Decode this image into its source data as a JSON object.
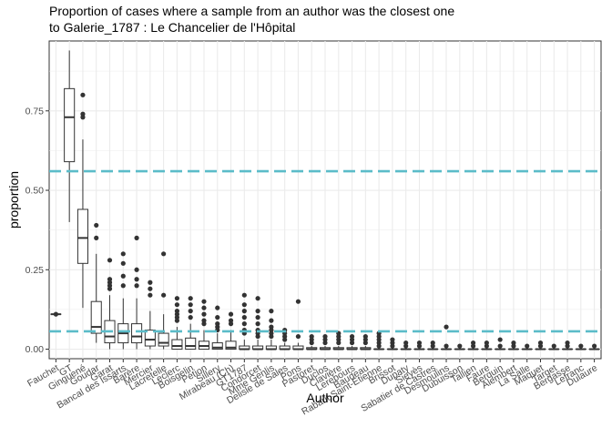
{
  "chart_data": {
    "type": "boxplot",
    "title": "Proportion of cases where a sample from an author was the closest one",
    "subtitle": "to Galerie_1787 : Le Chancelier de l'Hôpital",
    "xlabel": "Author",
    "ylabel": "proportion",
    "ylim": [
      -0.03,
      0.97
    ],
    "yticks": [
      0.0,
      0.25,
      0.5,
      0.75
    ],
    "ytick_labels": [
      "0.00",
      "0.25",
      "0.50",
      "0.75"
    ],
    "grid": true,
    "reference_lines": [
      {
        "y": 0.56,
        "color": "#5bbcc9",
        "style": "dashed"
      },
      {
        "y": 0.056,
        "color": "#5bbcc9",
        "style": "dashed"
      }
    ],
    "categories": [
      "Fauchet",
      "GT",
      "Ginguené",
      "Goudar",
      "Garat",
      "Bancal des Issarts",
      "Barère",
      "Mercier",
      "Lacretelle",
      "Leclerc",
      "Boisgelin",
      "Pétion (Cleville)",
      "Sillery",
      "Mirabeau (Ch)",
      "GT1787",
      "Condorcet",
      "Mme Genlis",
      "Delisle de Sales",
      "Pons",
      "Pastoret",
      "Duclos",
      "Clavière",
      "Lerebours",
      "Baudeau",
      "Rabaut Saint-Étienne",
      "Brissot",
      "Dupaty",
      "Sieyès",
      "Sabatier de Castres",
      "Desmoulins",
      "Dubuisson",
      "Tallien",
      "Faure",
      "Berquin",
      "Alembert",
      "La Salle",
      "Maquet",
      "Target",
      "Bergasse",
      "Lefranc",
      "Dulaure"
    ],
    "x_tick_labels": [
      "Fauchet",
      "GT",
      "Ginguené",
      "Goudar",
      "Garat",
      "Bancal des Issarts",
      "Barère",
      "Mercier",
      "Lacretelle",
      "Leclerc",
      "Boisgelin",
      "Pétion",
      "Sillery",
      "Mirabeau (Ch)",
      "GT1787",
      "Condorcet",
      "Mme Genlis",
      "Delisle de Sales",
      "Pons",
      "Pastoret",
      "Duclos",
      "Clavière",
      "Lerebours",
      "Baudeau",
      "Rabaut Saint-Étienne",
      "Brissot",
      "Dupaty",
      "Sieyès",
      "Sabatier de Castres",
      "Desmoulins",
      "Dubuisson",
      "Tallien",
      "Faure",
      "Berquin",
      "Alembert",
      "La Salle",
      "Maquet",
      "Target",
      "Bergasse",
      "Lefranc",
      "Dulaure"
    ],
    "box_color": "#333333",
    "boxes": [
      {
        "wmin": 0.11,
        "q1": 0.11,
        "median": 0.11,
        "q3": 0.11,
        "wmax": 0.11,
        "outliers": [
          0.11
        ]
      },
      {
        "wmin": 0.4,
        "q1": 0.59,
        "median": 0.73,
        "q3": 0.82,
        "wmax": 0.94,
        "outliers": []
      },
      {
        "wmin": 0.13,
        "q1": 0.27,
        "median": 0.35,
        "q3": 0.44,
        "wmax": 0.66,
        "outliers": [
          0.8,
          0.74,
          0.73
        ]
      },
      {
        "wmin": 0.02,
        "q1": 0.05,
        "median": 0.07,
        "q3": 0.15,
        "wmax": 0.3,
        "outliers": [
          0.39,
          0.35
        ]
      },
      {
        "wmin": 0.0,
        "q1": 0.02,
        "median": 0.04,
        "q3": 0.09,
        "wmax": 0.17,
        "outliers": [
          0.28,
          0.22,
          0.21,
          0.2,
          0.19
        ]
      },
      {
        "wmin": 0.0,
        "q1": 0.02,
        "median": 0.05,
        "q3": 0.08,
        "wmax": 0.16,
        "outliers": [
          0.3,
          0.27,
          0.23,
          0.2
        ]
      },
      {
        "wmin": 0.0,
        "q1": 0.02,
        "median": 0.04,
        "q3": 0.08,
        "wmax": 0.16,
        "outliers": [
          0.35,
          0.25,
          0.22,
          0.2
        ]
      },
      {
        "wmin": 0.0,
        "q1": 0.01,
        "median": 0.03,
        "q3": 0.06,
        "wmax": 0.12,
        "outliers": [
          0.21,
          0.19,
          0.17
        ]
      },
      {
        "wmin": 0.0,
        "q1": 0.01,
        "median": 0.02,
        "q3": 0.05,
        "wmax": 0.11,
        "outliers": [
          0.3,
          0.17
        ]
      },
      {
        "wmin": 0.0,
        "q1": 0.0,
        "median": 0.01,
        "q3": 0.03,
        "wmax": 0.07,
        "outliers": [
          0.16,
          0.14,
          0.12,
          0.11,
          0.1,
          0.09
        ]
      },
      {
        "wmin": 0.0,
        "q1": 0.0,
        "median": 0.01,
        "q3": 0.035,
        "wmax": 0.08,
        "outliers": [
          0.16,
          0.14,
          0.12,
          0.1
        ]
      },
      {
        "wmin": 0.0,
        "q1": 0.0,
        "median": 0.01,
        "q3": 0.025,
        "wmax": 0.06,
        "outliers": [
          0.15,
          0.13,
          0.11,
          0.09,
          0.08
        ]
      },
      {
        "wmin": 0.0,
        "q1": 0.0,
        "median": 0.005,
        "q3": 0.02,
        "wmax": 0.05,
        "outliers": [
          0.13,
          0.1,
          0.08,
          0.07,
          0.06
        ]
      },
      {
        "wmin": 0.0,
        "q1": 0.0,
        "median": 0.005,
        "q3": 0.025,
        "wmax": 0.06,
        "outliers": [
          0.11,
          0.09,
          0.08
        ]
      },
      {
        "wmin": 0.0,
        "q1": 0.0,
        "median": 0.0,
        "q3": 0.01,
        "wmax": 0.03,
        "outliers": [
          0.17,
          0.14,
          0.12,
          0.1,
          0.08,
          0.06,
          0.05
        ]
      },
      {
        "wmin": 0.0,
        "q1": 0.0,
        "median": 0.0,
        "q3": 0.01,
        "wmax": 0.03,
        "outliers": [
          0.16,
          0.12,
          0.1,
          0.08,
          0.06,
          0.05,
          0.04
        ]
      },
      {
        "wmin": 0.0,
        "q1": 0.0,
        "median": 0.0,
        "q3": 0.01,
        "wmax": 0.03,
        "outliers": [
          0.12,
          0.09,
          0.07,
          0.06,
          0.05,
          0.04
        ]
      },
      {
        "wmin": 0.0,
        "q1": 0.0,
        "median": 0.0,
        "q3": 0.01,
        "wmax": 0.02,
        "outliers": [
          0.06,
          0.05,
          0.04,
          0.03
        ]
      },
      {
        "wmin": 0.0,
        "q1": 0.0,
        "median": 0.0,
        "q3": 0.01,
        "wmax": 0.02,
        "outliers": [
          0.15,
          0.04
        ]
      },
      {
        "wmin": 0.0,
        "q1": 0.0,
        "median": 0.0,
        "q3": 0.005,
        "wmax": 0.01,
        "outliers": [
          0.04,
          0.03,
          0.02
        ]
      },
      {
        "wmin": 0.0,
        "q1": 0.0,
        "median": 0.0,
        "q3": 0.005,
        "wmax": 0.01,
        "outliers": [
          0.04,
          0.03,
          0.02
        ]
      },
      {
        "wmin": 0.0,
        "q1": 0.0,
        "median": 0.0,
        "q3": 0.005,
        "wmax": 0.01,
        "outliers": [
          0.05,
          0.04,
          0.03,
          0.02
        ]
      },
      {
        "wmin": 0.0,
        "q1": 0.0,
        "median": 0.0,
        "q3": 0.005,
        "wmax": 0.01,
        "outliers": [
          0.04,
          0.03,
          0.02
        ]
      },
      {
        "wmin": 0.0,
        "q1": 0.0,
        "median": 0.0,
        "q3": 0.005,
        "wmax": 0.01,
        "outliers": [
          0.04,
          0.03,
          0.02
        ]
      },
      {
        "wmin": 0.0,
        "q1": 0.0,
        "median": 0.0,
        "q3": 0.0,
        "wmax": 0.0,
        "outliers": [
          0.05,
          0.04,
          0.03,
          0.02,
          0.01
        ]
      },
      {
        "wmin": 0.0,
        "q1": 0.0,
        "median": 0.0,
        "q3": 0.0,
        "wmax": 0.0,
        "outliers": [
          0.03,
          0.02,
          0.01
        ]
      },
      {
        "wmin": 0.0,
        "q1": 0.0,
        "median": 0.0,
        "q3": 0.0,
        "wmax": 0.0,
        "outliers": [
          0.02,
          0.01
        ]
      },
      {
        "wmin": 0.0,
        "q1": 0.0,
        "median": 0.0,
        "q3": 0.0,
        "wmax": 0.0,
        "outliers": [
          0.02,
          0.01
        ]
      },
      {
        "wmin": 0.0,
        "q1": 0.0,
        "median": 0.0,
        "q3": 0.0,
        "wmax": 0.0,
        "outliers": [
          0.02,
          0.01
        ]
      },
      {
        "wmin": 0.0,
        "q1": 0.0,
        "median": 0.0,
        "q3": 0.0,
        "wmax": 0.0,
        "outliers": [
          0.07,
          0.01
        ]
      },
      {
        "wmin": 0.0,
        "q1": 0.0,
        "median": 0.0,
        "q3": 0.0,
        "wmax": 0.0,
        "outliers": [
          0.01
        ]
      },
      {
        "wmin": 0.0,
        "q1": 0.0,
        "median": 0.0,
        "q3": 0.0,
        "wmax": 0.0,
        "outliers": [
          0.02,
          0.01
        ]
      },
      {
        "wmin": 0.0,
        "q1": 0.0,
        "median": 0.0,
        "q3": 0.0,
        "wmax": 0.0,
        "outliers": [
          0.02,
          0.01
        ]
      },
      {
        "wmin": 0.0,
        "q1": 0.0,
        "median": 0.0,
        "q3": 0.0,
        "wmax": 0.0,
        "outliers": [
          0.03,
          0.01
        ]
      },
      {
        "wmin": 0.0,
        "q1": 0.0,
        "median": 0.0,
        "q3": 0.0,
        "wmax": 0.0,
        "outliers": [
          0.02,
          0.01
        ]
      },
      {
        "wmin": 0.0,
        "q1": 0.0,
        "median": 0.0,
        "q3": 0.0,
        "wmax": 0.0,
        "outliers": [
          0.01
        ]
      },
      {
        "wmin": 0.0,
        "q1": 0.0,
        "median": 0.0,
        "q3": 0.0,
        "wmax": 0.0,
        "outliers": [
          0.02,
          0.01
        ]
      },
      {
        "wmin": 0.0,
        "q1": 0.0,
        "median": 0.0,
        "q3": 0.0,
        "wmax": 0.0,
        "outliers": [
          0.01
        ]
      },
      {
        "wmin": 0.0,
        "q1": 0.0,
        "median": 0.0,
        "q3": 0.0,
        "wmax": 0.0,
        "outliers": [
          0.02,
          0.01
        ]
      },
      {
        "wmin": 0.0,
        "q1": 0.0,
        "median": 0.0,
        "q3": 0.0,
        "wmax": 0.0,
        "outliers": [
          0.01
        ]
      },
      {
        "wmin": 0.0,
        "q1": 0.0,
        "median": 0.0,
        "q3": 0.0,
        "wmax": 0.0,
        "outliers": [
          0.01
        ]
      }
    ]
  }
}
